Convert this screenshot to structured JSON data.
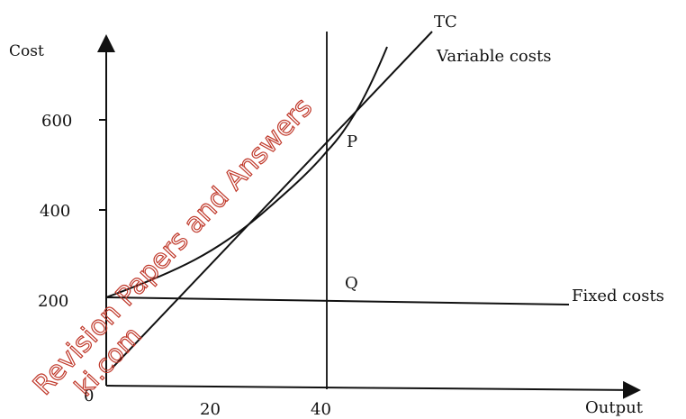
{
  "chart_data": {
    "type": "line",
    "ylabel": "Cost",
    "xlabel": "Output",
    "x_ticks": [
      "0",
      "20",
      "40"
    ],
    "y_ticks": [
      "200",
      "400",
      "600"
    ],
    "origin_label": "0",
    "series": [
      {
        "name": "TC",
        "label": "TC",
        "x": [
          0,
          10,
          20,
          30,
          40,
          45,
          50
        ],
        "y": [
          200,
          262,
          325,
          410,
          540,
          640,
          760
        ]
      },
      {
        "name": "Variable costs",
        "label": "Variable costs",
        "x": [
          0,
          40,
          58
        ],
        "y": [
          20,
          540,
          800
        ]
      },
      {
        "name": "Fixed costs",
        "label": "Fixed costs",
        "x": [
          0,
          72
        ],
        "y": [
          200,
          200
        ]
      }
    ],
    "vertical_line_x": 40,
    "points": [
      {
        "label": "P",
        "x": 40,
        "y": 540
      },
      {
        "label": "Q",
        "x": 40,
        "y": 200
      }
    ],
    "xlim": [
      0,
      72
    ],
    "ylim": [
      0,
      800
    ]
  },
  "watermark": {
    "text": "Revision Papers and Answers",
    "subtext": "ki.com",
    "color": "#c0392b"
  }
}
